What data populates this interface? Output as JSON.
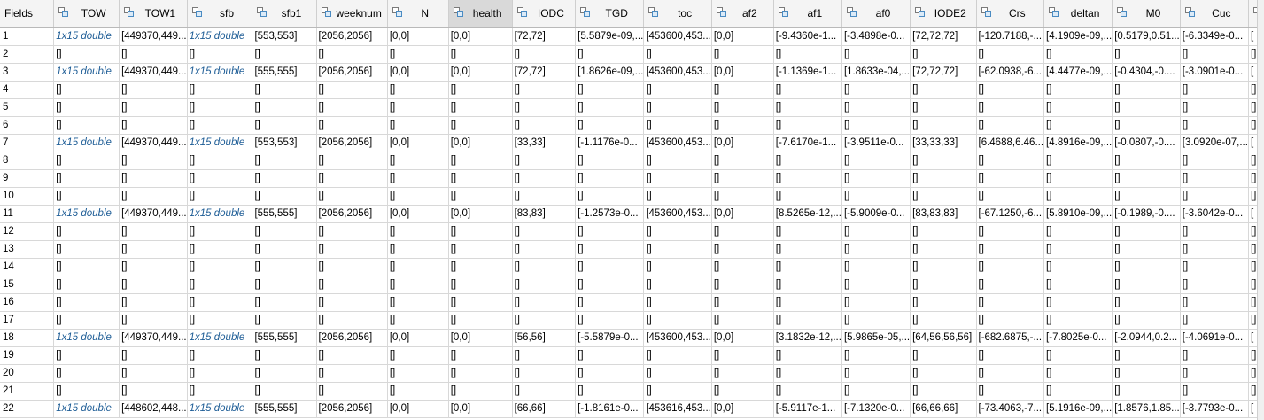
{
  "corner_label": "Fields",
  "columns": [
    "TOW",
    "TOW1",
    "sfb",
    "sfb1",
    "weeknum",
    "N",
    "health",
    "IODC",
    "TGD",
    "toc",
    "af2",
    "af1",
    "af0",
    "IODE2",
    "Crs",
    "deltan",
    "M0",
    "Cuc",
    ""
  ],
  "active_column": "health",
  "row_numbers": [
    "1",
    "2",
    "3",
    "4",
    "5",
    "6",
    "7",
    "8",
    "9",
    "10",
    "11",
    "12",
    "13",
    "14",
    "15",
    "16",
    "17",
    "18",
    "19",
    "20",
    "21",
    "22"
  ],
  "empty_value": "[]",
  "data_rows": {
    "0": [
      "1x15 double",
      "[449370,449...",
      "1x15 double",
      "[553,553]",
      "[2056,2056]",
      "[0,0]",
      "[0,0]",
      "[72,72]",
      "[5.5879e-09,...",
      "[453600,453...",
      "[0,0]",
      "[-9.4360e-1...",
      "[-3.4898e-0...",
      "[72,72,72]",
      "[-120.7188,-...",
      "[4.1909e-09,...",
      "[0.5179,0.51...",
      "[-6.3349e-0...",
      "["
    ],
    "2": [
      "1x15 double",
      "[449370,449...",
      "1x15 double",
      "[555,555]",
      "[2056,2056]",
      "[0,0]",
      "[0,0]",
      "[72,72]",
      "[1.8626e-09,...",
      "[453600,453...",
      "[0,0]",
      "[-1.1369e-1...",
      "[1.8633e-04,...",
      "[72,72,72]",
      "[-62.0938,-6...",
      "[4.4477e-09,...",
      "[-0.4304,-0....",
      "[-3.0901e-0...",
      "["
    ],
    "6": [
      "1x15 double",
      "[449370,449...",
      "1x15 double",
      "[553,553]",
      "[2056,2056]",
      "[0,0]",
      "[0,0]",
      "[33,33]",
      "[-1.1176e-0...",
      "[453600,453...",
      "[0,0]",
      "[-7.6170e-1...",
      "[-3.9511e-0...",
      "[33,33,33]",
      "[6.4688,6.46...",
      "[4.8916e-09,...",
      "[-0.0807,-0....",
      "[3.0920e-07,...",
      "["
    ],
    "10": [
      "1x15 double",
      "[449370,449...",
      "1x15 double",
      "[555,555]",
      "[2056,2056]",
      "[0,0]",
      "[0,0]",
      "[83,83]",
      "[-1.2573e-0...",
      "[453600,453...",
      "[0,0]",
      "[8.5265e-12,...",
      "[-5.9009e-0...",
      "[83,83,83]",
      "[-67.1250,-6...",
      "[5.8910e-09,...",
      "[-0.1989,-0....",
      "[-3.6042e-0...",
      "["
    ],
    "17": [
      "1x15 double",
      "[449370,449...",
      "1x15 double",
      "[555,555]",
      "[2056,2056]",
      "[0,0]",
      "[0,0]",
      "[56,56]",
      "[-5.5879e-0...",
      "[453600,453...",
      "[0,0]",
      "[3.1832e-12,...",
      "[5.9865e-05,...",
      "[64,56,56,56]",
      "[-682.6875,-...",
      "[-7.8025e-0...",
      "[-2.0944,0.2...",
      "[-4.0691e-0...",
      "["
    ],
    "21": [
      "1x15 double",
      "[448602,448...",
      "1x15 double",
      "[555,555]",
      "[2056,2056]",
      "[0,0]",
      "[0,0]",
      "[66,66]",
      "[-1.8161e-0...",
      "[453616,453...",
      "[0,0]",
      "[-5.9117e-1...",
      "[-7.1320e-0...",
      "[66,66,66]",
      "[-73.4063,-7...",
      "[5.1916e-09,...",
      "[1.8576,1.85...",
      "[-3.7793e-0...",
      "["
    ]
  },
  "object_columns": [
    0,
    2
  ],
  "icons": {
    "field": "struct-field-icon"
  },
  "colors": {
    "object_text": "#1e5d96",
    "active_header": "#d9d9d9",
    "header_bg": "#f4f4f4",
    "icon_border": "#4a8bc2"
  }
}
